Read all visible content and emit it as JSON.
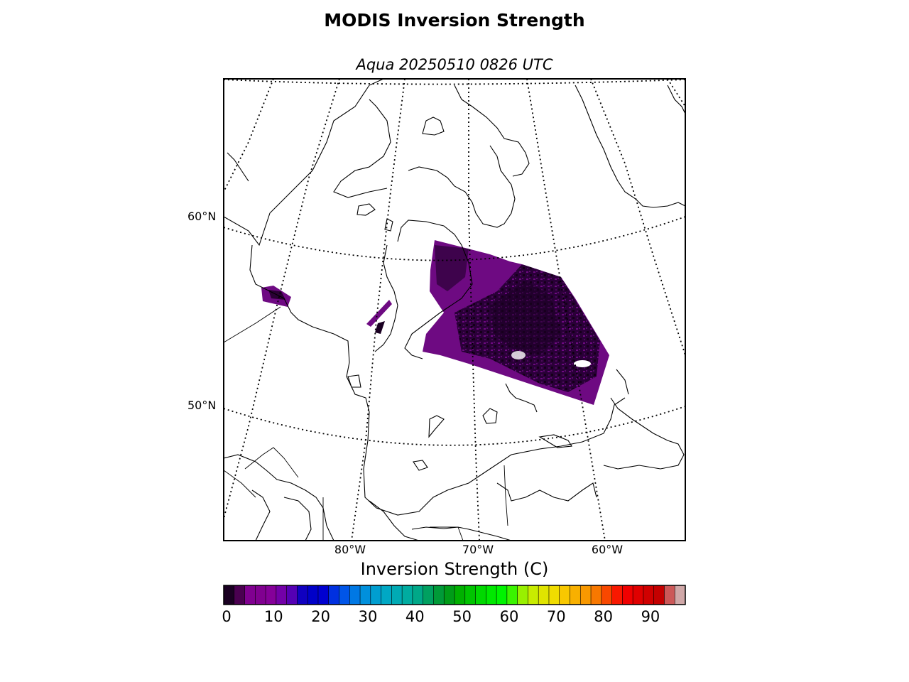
{
  "figure": {
    "title": "MODIS Inversion Strength",
    "subtitle": "Aqua 20250510 0826 UTC"
  },
  "map": {
    "projection": "polar stereographic",
    "lat_labels": [
      "60°N",
      "50°N"
    ],
    "lon_labels": [
      "80°W",
      "70°W",
      "60°W"
    ],
    "gridline_style": "dotted",
    "data_color_dark": "#1a0022",
    "data_color_mid": "#3d0050",
    "data_color_purple": "#6e0a82"
  },
  "colorbar": {
    "label": "Inversion Strength (C)",
    "tick_labels": [
      "0",
      "10",
      "20",
      "30",
      "40",
      "50",
      "60",
      "70",
      "80",
      "90"
    ],
    "range": [
      0,
      98
    ],
    "colors": [
      "#1a0022",
      "#4a0050",
      "#800090",
      "#800090",
      "#850099",
      "#7300a8",
      "#5500b4",
      "#1000c0",
      "#0000c8",
      "#0000d0",
      "#0030e0",
      "#0055e8",
      "#0078e4",
      "#0090dc",
      "#009ed0",
      "#00a8c4",
      "#00aab4",
      "#00aca0",
      "#00a888",
      "#00a060",
      "#009a38",
      "#009c18",
      "#00b000",
      "#00c400",
      "#00d800",
      "#00e800",
      "#00f400",
      "#3af400",
      "#98f000",
      "#c8ec00",
      "#e0e400",
      "#f0dc00",
      "#f8c800",
      "#f8b000",
      "#f89800",
      "#f87800",
      "#f84800",
      "#f81800",
      "#f00000",
      "#e00000",
      "#d00000",
      "#c40000",
      "#cc5858",
      "#d0a8a8"
    ]
  }
}
